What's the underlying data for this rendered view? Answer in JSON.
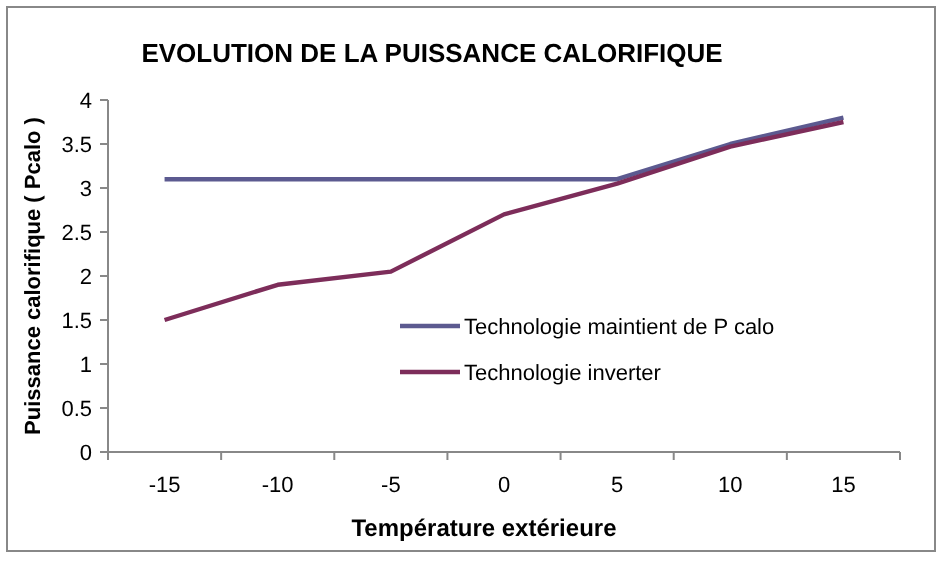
{
  "chart_data": {
    "type": "line",
    "title": "EVOLUTION DE LA PUISSANCE CALORIFIQUE",
    "xlabel": "Température extérieure",
    "ylabel": "Puissance calorifique ( Pcalo )",
    "categories": [
      "-15",
      "-10",
      "-5",
      "0",
      "5",
      "10",
      "15"
    ],
    "series": [
      {
        "name": "Technologie  maintient de P calo",
        "color": "#5c5a90",
        "values": [
          3.1,
          3.1,
          3.1,
          3.1,
          3.1,
          3.5,
          3.8
        ]
      },
      {
        "name": "Technologie inverter",
        "color": "#7d2d5a",
        "values": [
          1.5,
          1.9,
          2.05,
          2.7,
          3.05,
          3.47,
          3.75
        ]
      }
    ],
    "ylim": [
      0,
      4
    ],
    "yticks": [
      0,
      0.5,
      1,
      1.5,
      2,
      2.5,
      3,
      3.5,
      4
    ],
    "legend": "bottom right",
    "grid": false,
    "marker": "none",
    "line_style": "solid"
  }
}
